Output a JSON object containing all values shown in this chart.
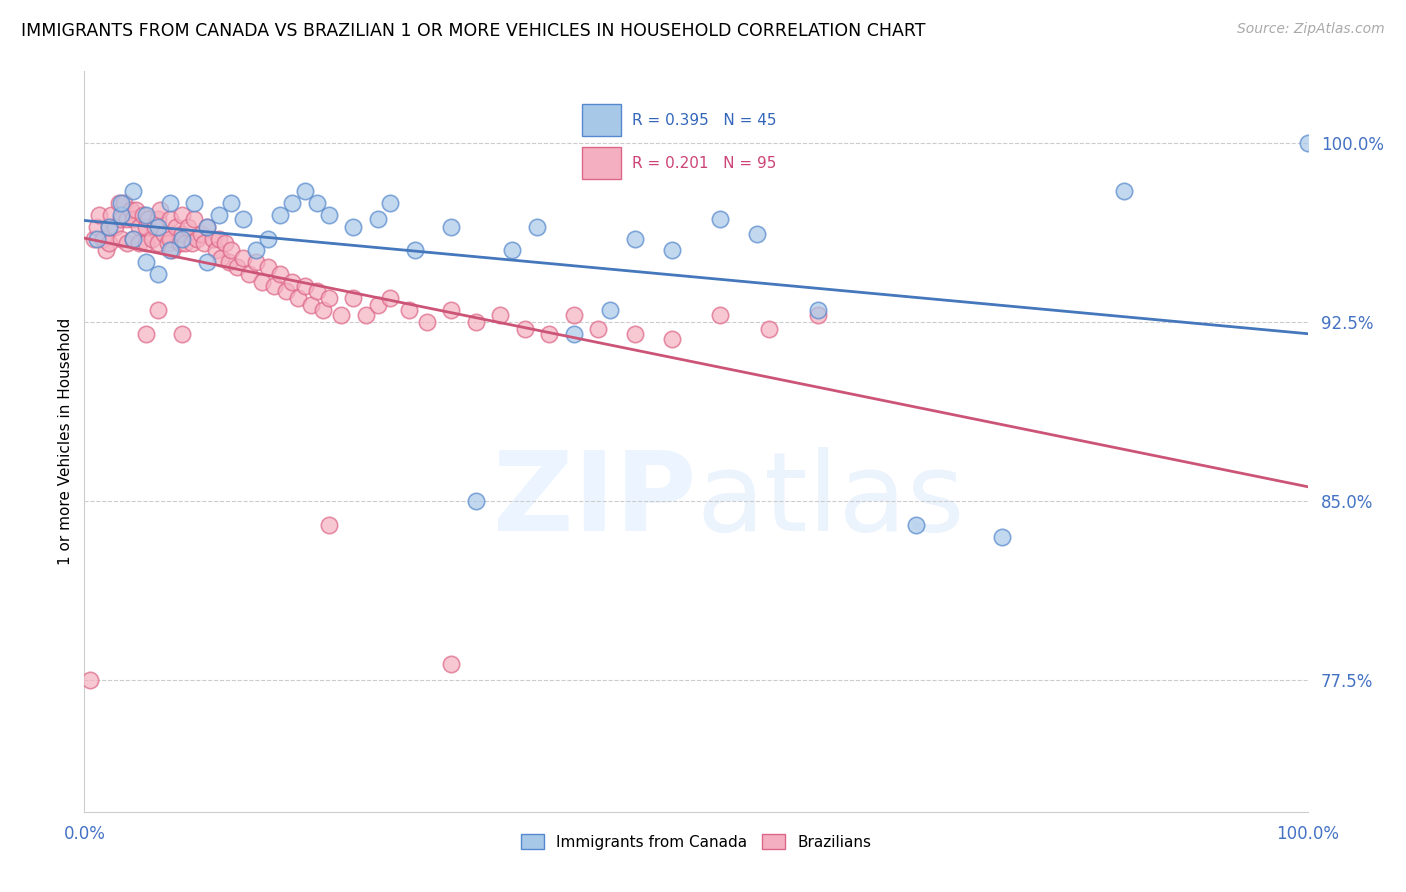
{
  "title": "IMMIGRANTS FROM CANADA VS BRAZILIAN 1 OR MORE VEHICLES IN HOUSEHOLD CORRELATION CHART",
  "source": "Source: ZipAtlas.com",
  "ylabel": "1 or more Vehicles in Household",
  "xlim": [
    0.0,
    1.0
  ],
  "ylim": [
    0.72,
    1.03
  ],
  "yticks": [
    0.775,
    0.85,
    0.925,
    1.0
  ],
  "ytick_labels": [
    "77.5%",
    "85.0%",
    "92.5%",
    "100.0%"
  ],
  "xticks": [
    0.0,
    0.2,
    0.4,
    0.6,
    0.8,
    1.0
  ],
  "xtick_labels": [
    "0.0%",
    "",
    "",
    "",
    "",
    "100.0%"
  ],
  "blue_R": 0.395,
  "blue_N": 45,
  "pink_R": 0.201,
  "pink_N": 95,
  "blue_color": "#a8c8e8",
  "pink_color": "#f4b0c0",
  "blue_edge_color": "#5588cc",
  "pink_edge_color": "#dd6688",
  "blue_line_color": "#4477bb",
  "pink_line_color": "#cc5577",
  "blue_scatter_x": [
    0.01,
    0.02,
    0.03,
    0.03,
    0.04,
    0.04,
    0.05,
    0.05,
    0.06,
    0.06,
    0.07,
    0.07,
    0.08,
    0.09,
    0.1,
    0.1,
    0.11,
    0.12,
    0.13,
    0.14,
    0.15,
    0.16,
    0.17,
    0.18,
    0.19,
    0.2,
    0.22,
    0.24,
    0.25,
    0.27,
    0.3,
    0.32,
    0.35,
    0.37,
    0.4,
    0.43,
    0.45,
    0.48,
    0.52,
    0.55,
    0.6,
    0.68,
    0.75,
    0.85,
    1.0
  ],
  "blue_scatter_y": [
    0.96,
    0.965,
    0.97,
    0.975,
    0.98,
    0.96,
    0.97,
    0.95,
    0.965,
    0.945,
    0.975,
    0.955,
    0.96,
    0.975,
    0.95,
    0.965,
    0.97,
    0.975,
    0.968,
    0.955,
    0.96,
    0.97,
    0.975,
    0.98,
    0.975,
    0.97,
    0.965,
    0.968,
    0.975,
    0.955,
    0.965,
    0.85,
    0.955,
    0.965,
    0.92,
    0.93,
    0.96,
    0.955,
    0.968,
    0.962,
    0.93,
    0.84,
    0.835,
    0.98,
    1.0
  ],
  "pink_scatter_x": [
    0.005,
    0.008,
    0.01,
    0.012,
    0.015,
    0.018,
    0.02,
    0.02,
    0.022,
    0.025,
    0.028,
    0.03,
    0.03,
    0.032,
    0.035,
    0.035,
    0.038,
    0.04,
    0.04,
    0.042,
    0.045,
    0.045,
    0.048,
    0.05,
    0.05,
    0.052,
    0.055,
    0.058,
    0.06,
    0.06,
    0.062,
    0.065,
    0.068,
    0.07,
    0.07,
    0.072,
    0.075,
    0.078,
    0.08,
    0.08,
    0.082,
    0.085,
    0.088,
    0.09,
    0.092,
    0.095,
    0.098,
    0.1,
    0.105,
    0.108,
    0.11,
    0.112,
    0.115,
    0.118,
    0.12,
    0.125,
    0.13,
    0.135,
    0.14,
    0.145,
    0.15,
    0.155,
    0.16,
    0.165,
    0.17,
    0.175,
    0.18,
    0.185,
    0.19,
    0.195,
    0.2,
    0.21,
    0.22,
    0.23,
    0.24,
    0.25,
    0.265,
    0.28,
    0.3,
    0.32,
    0.34,
    0.36,
    0.38,
    0.4,
    0.42,
    0.45,
    0.48,
    0.52,
    0.56,
    0.6,
    0.05,
    0.06,
    0.08,
    0.2,
    0.3
  ],
  "pink_scatter_y": [
    0.775,
    0.96,
    0.965,
    0.97,
    0.96,
    0.955,
    0.965,
    0.958,
    0.97,
    0.965,
    0.975,
    0.968,
    0.96,
    0.975,
    0.968,
    0.958,
    0.972,
    0.968,
    0.96,
    0.972,
    0.965,
    0.958,
    0.97,
    0.965,
    0.958,
    0.968,
    0.96,
    0.965,
    0.968,
    0.958,
    0.972,
    0.962,
    0.958,
    0.968,
    0.96,
    0.955,
    0.965,
    0.958,
    0.97,
    0.962,
    0.958,
    0.965,
    0.958,
    0.968,
    0.96,
    0.962,
    0.958,
    0.965,
    0.96,
    0.955,
    0.96,
    0.952,
    0.958,
    0.95,
    0.955,
    0.948,
    0.952,
    0.945,
    0.95,
    0.942,
    0.948,
    0.94,
    0.945,
    0.938,
    0.942,
    0.935,
    0.94,
    0.932,
    0.938,
    0.93,
    0.935,
    0.928,
    0.935,
    0.928,
    0.932,
    0.935,
    0.93,
    0.925,
    0.93,
    0.925,
    0.928,
    0.922,
    0.92,
    0.928,
    0.922,
    0.92,
    0.918,
    0.928,
    0.922,
    0.928,
    0.92,
    0.93,
    0.92,
    0.84,
    0.782
  ]
}
